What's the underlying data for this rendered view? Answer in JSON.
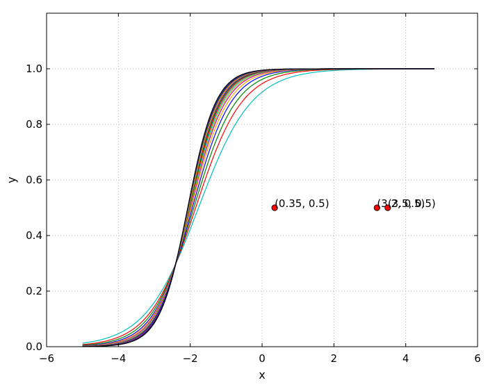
{
  "chart_data": {
    "type": "line",
    "title": "",
    "xlabel": "x",
    "ylabel": "y",
    "xlim": [
      -6,
      6
    ],
    "ylim": [
      0,
      1.2
    ],
    "grid": true,
    "xticks": [
      -6,
      -4,
      -2,
      0,
      2,
      4,
      6
    ],
    "xtick_labels": [
      "−6",
      "−4",
      "−2",
      "0",
      "2",
      "4",
      "6"
    ],
    "yticks": [
      0.0,
      0.2,
      0.4,
      0.6,
      0.8,
      1.0
    ],
    "ytick_labels": [
      "0.0",
      "0.2",
      "0.4",
      "0.6",
      "0.8",
      "1.0"
    ],
    "x_range": [
      -5,
      4.8
    ],
    "curve_family": "logistic y = 1/(1+exp(-k(x-x0))), all passing near (-2.4, 0.3)",
    "series": [
      {
        "color": "#00bfbf",
        "k": 1.35,
        "x0": -1.77
      },
      {
        "color": "#ff0000",
        "k": 1.55,
        "x0": -1.85
      },
      {
        "color": "#008000",
        "k": 1.7,
        "x0": -1.9
      },
      {
        "color": "#0000ff",
        "k": 1.85,
        "x0": -1.94
      },
      {
        "color": "#ffa500",
        "k": 1.95,
        "x0": -1.97
      },
      {
        "color": "#bf00bf",
        "k": 2.05,
        "x0": -1.99
      },
      {
        "color": "#bfbf00",
        "k": 2.12,
        "x0": -2.0
      },
      {
        "color": "#00bfbf",
        "k": 2.18,
        "x0": -2.01
      },
      {
        "color": "#ff0000",
        "k": 2.24,
        "x0": -2.02
      },
      {
        "color": "#008000",
        "k": 2.29,
        "x0": -2.03
      },
      {
        "color": "#0000ff",
        "k": 2.33,
        "x0": -2.04
      },
      {
        "color": "#ffa500",
        "k": 2.37,
        "x0": -2.04
      },
      {
        "color": "#bf00bf",
        "k": 2.4,
        "x0": -2.05
      },
      {
        "color": "#bfbf00",
        "k": 2.43,
        "x0": -2.05
      },
      {
        "color": "#000080",
        "k": 2.46,
        "x0": -2.06
      },
      {
        "color": "#1f1f7a",
        "k": 2.49,
        "x0": -2.06
      },
      {
        "color": "#3b3b8f",
        "k": 2.52,
        "x0": -2.06
      },
      {
        "color": "#000000",
        "k": 2.55,
        "x0": -2.07
      }
    ],
    "points": [
      {
        "x": 0.35,
        "y": 0.5,
        "label": "(0.35, 0.5)",
        "color": "#ff0000"
      },
      {
        "x": 3.2,
        "y": 0.5,
        "label": "(3.2, 0.5)",
        "color": "#ff0000"
      },
      {
        "x": 3.5,
        "y": 0.5,
        "label": "(3.5, 0.5)",
        "color": "#ff0000"
      }
    ]
  }
}
